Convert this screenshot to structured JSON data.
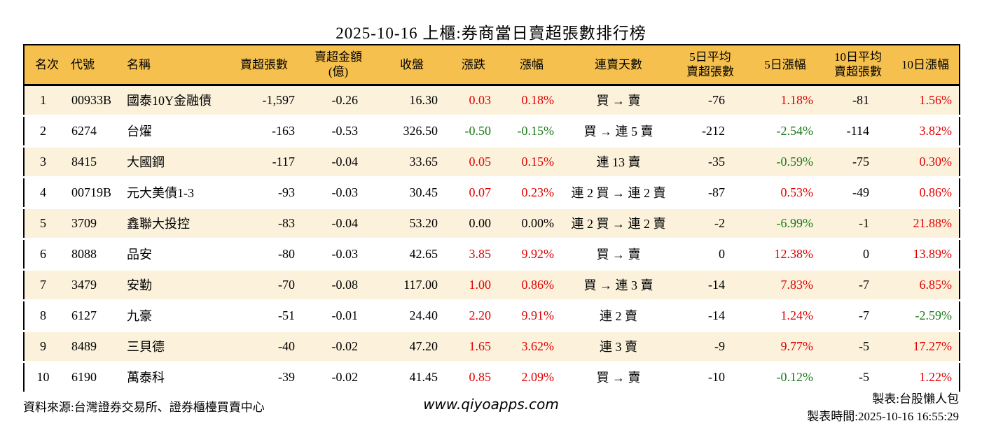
{
  "title": "2025-10-16 上櫃:券商當日賣超張數排行榜",
  "colors": {
    "header_bg": "#F6C04E",
    "row_stripe": "#FCF2DC",
    "row_plain": "#FFFFFF",
    "up_red": "#E00000",
    "down_green": "#1A7A1A",
    "border": "#000000"
  },
  "table": {
    "headers": {
      "rank": "名次",
      "code": "代號",
      "name": "名稱",
      "sell_volume": "賣超張數",
      "sell_amount": "賣超金額\n(億)",
      "close": "收盤",
      "change": "漲跌",
      "change_pct": "漲幅",
      "streak": "連賣天數",
      "avg5": "5日平均\n賣超張數",
      "pct5": "5日漲幅",
      "avg10": "10日平均\n賣超張數",
      "pct10": "10日漲幅"
    },
    "rows": [
      {
        "rank": "1",
        "code": "00933B",
        "name": "國泰10Y金融債",
        "sell_volume": "-1,597",
        "sell_amount": "-0.26",
        "close": "16.30",
        "change": "0.03",
        "change_pct": "0.18%",
        "streak": "買 → 賣",
        "avg5": "-76",
        "pct5": "1.18%",
        "avg10": "-81",
        "pct10": "1.56%"
      },
      {
        "rank": "2",
        "code": "6274",
        "name": "台燿",
        "sell_volume": "-163",
        "sell_amount": "-0.53",
        "close": "326.50",
        "change": "-0.50",
        "change_pct": "-0.15%",
        "streak": "買 → 連 5 賣",
        "avg5": "-212",
        "pct5": "-2.54%",
        "avg10": "-114",
        "pct10": "3.82%"
      },
      {
        "rank": "3",
        "code": "8415",
        "name": "大國鋼",
        "sell_volume": "-117",
        "sell_amount": "-0.04",
        "close": "33.65",
        "change": "0.05",
        "change_pct": "0.15%",
        "streak": "連 13 賣",
        "avg5": "-35",
        "pct5": "-0.59%",
        "avg10": "-75",
        "pct10": "0.30%"
      },
      {
        "rank": "4",
        "code": "00719B",
        "name": "元大美債1-3",
        "sell_volume": "-93",
        "sell_amount": "-0.03",
        "close": "30.45",
        "change": "0.07",
        "change_pct": "0.23%",
        "streak": "連 2 買 → 連 2 賣",
        "avg5": "-87",
        "pct5": "0.53%",
        "avg10": "-49",
        "pct10": "0.86%"
      },
      {
        "rank": "5",
        "code": "3709",
        "name": "鑫聯大投控",
        "sell_volume": "-83",
        "sell_amount": "-0.04",
        "close": "53.20",
        "change": "0.00",
        "change_pct": "0.00%",
        "streak": "連 2 買 → 連 2 賣",
        "avg5": "-2",
        "pct5": "-6.99%",
        "avg10": "-1",
        "pct10": "21.88%"
      },
      {
        "rank": "6",
        "code": "8088",
        "name": "品安",
        "sell_volume": "-80",
        "sell_amount": "-0.03",
        "close": "42.65",
        "change": "3.85",
        "change_pct": "9.92%",
        "streak": "買 → 賣",
        "avg5": "0",
        "pct5": "12.38%",
        "avg10": "0",
        "pct10": "13.89%"
      },
      {
        "rank": "7",
        "code": "3479",
        "name": "安勤",
        "sell_volume": "-70",
        "sell_amount": "-0.08",
        "close": "117.00",
        "change": "1.00",
        "change_pct": "0.86%",
        "streak": "買 → 連 3 賣",
        "avg5": "-14",
        "pct5": "7.83%",
        "avg10": "-7",
        "pct10": "6.85%"
      },
      {
        "rank": "8",
        "code": "6127",
        "name": "九豪",
        "sell_volume": "-51",
        "sell_amount": "-0.01",
        "close": "24.40",
        "change": "2.20",
        "change_pct": "9.91%",
        "streak": "連 2 賣",
        "avg5": "-14",
        "pct5": "1.24%",
        "avg10": "-7",
        "pct10": "-2.59%"
      },
      {
        "rank": "9",
        "code": "8489",
        "name": "三貝德",
        "sell_volume": "-40",
        "sell_amount": "-0.02",
        "close": "47.20",
        "change": "1.65",
        "change_pct": "3.62%",
        "streak": "連 3 賣",
        "avg5": "-9",
        "pct5": "9.77%",
        "avg10": "-5",
        "pct10": "17.27%"
      },
      {
        "rank": "10",
        "code": "6190",
        "name": "萬泰科",
        "sell_volume": "-39",
        "sell_amount": "-0.02",
        "close": "41.45",
        "change": "0.85",
        "change_pct": "2.09%",
        "streak": "買 → 賣",
        "avg5": "-10",
        "pct5": "-0.12%",
        "avg10": "-5",
        "pct10": "1.22%"
      }
    ]
  },
  "footer": {
    "source": "資料來源:台灣證券交易所、證券櫃檯買賣中心",
    "website": "www.qiyoapps.com",
    "maker": "製表:台股懶人包",
    "generated": "製表時間:2025-10-16 16:55:29"
  }
}
